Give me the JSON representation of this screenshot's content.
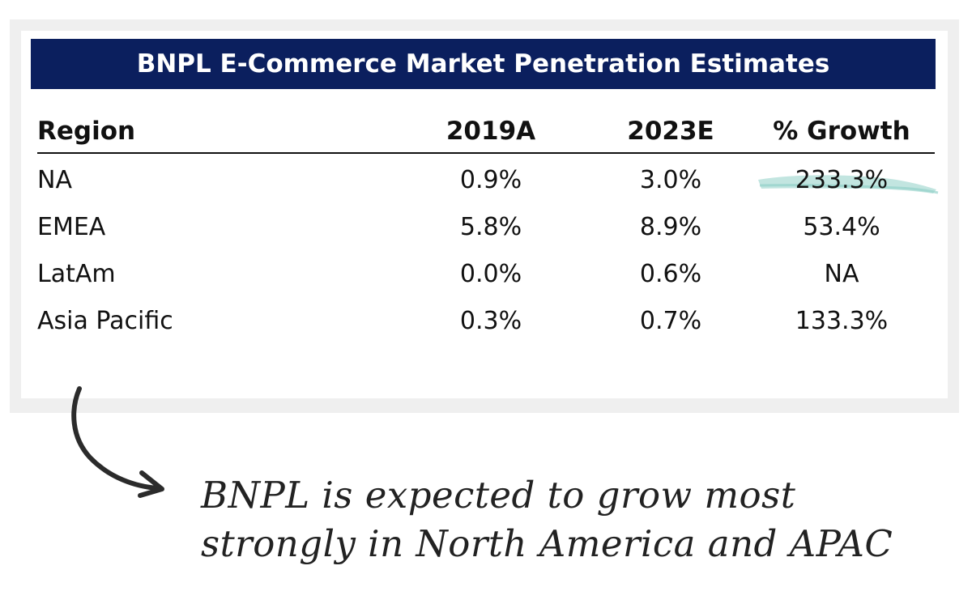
{
  "title": "BNPL E-Commerce Market Penetration Estimates",
  "headers": {
    "region": "Region",
    "year_2019": "2019A",
    "year_2023": "2023E",
    "growth": "% Growth"
  },
  "rows": [
    {
      "region": "NA",
      "y2019": "0.9%",
      "y2023": "3.0%",
      "growth": "233.3%"
    },
    {
      "region": "EMEA",
      "y2019": "5.8%",
      "y2023": "8.9%",
      "growth": "53.4%"
    },
    {
      "region": "LatAm",
      "y2019": "0.0%",
      "y2023": "0.6%",
      "growth": "NA"
    },
    {
      "region": "Asia Pacific",
      "y2019": "0.3%",
      "y2023": "0.7%",
      "growth": "133.3%"
    }
  ],
  "annotation": {
    "line1": "BNPL is expected to grow most",
    "line2": "strongly in North America and APAC"
  },
  "colors": {
    "title_bar": "#0b1f5e",
    "highlight": "#8fd0c7",
    "text": "#111111"
  },
  "chart_data": {
    "type": "table",
    "title": "BNPL E-Commerce Market Penetration Estimates",
    "columns": [
      "Region",
      "2019A",
      "2023E",
      "% Growth"
    ],
    "rows": [
      [
        "NA",
        "0.9%",
        "3.0%",
        "233.3%"
      ],
      [
        "EMEA",
        "5.8%",
        "8.9%",
        "53.4%"
      ],
      [
        "LatAm",
        "0.0%",
        "0.6%",
        "NA"
      ],
      [
        "Asia Pacific",
        "0.3%",
        "0.7%",
        "133.3%"
      ]
    ],
    "highlighted_cells": [
      {
        "row": "NA",
        "column": "% Growth"
      }
    ]
  }
}
